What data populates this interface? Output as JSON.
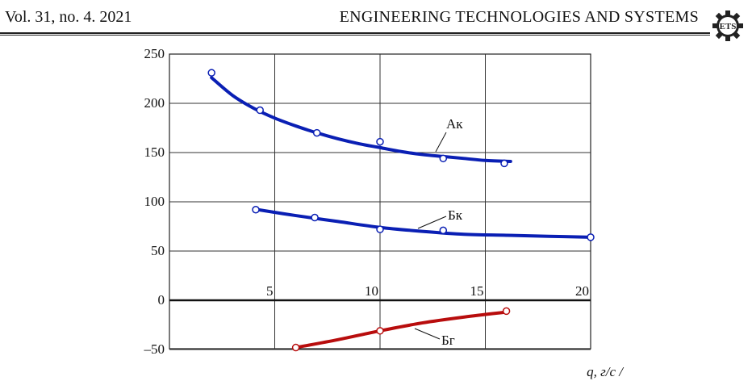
{
  "header": {
    "left": "Vol. 31, no. 4. 2021",
    "right": "ENGINEERING TECHNOLOGIES AND SYSTEMS",
    "logo_text": "ETS"
  },
  "chart_data": {
    "type": "line",
    "xlabel": "q, г/с /",
    "ylabel": "",
    "xlim": [
      0,
      20
    ],
    "ylim": [
      -50,
      250
    ],
    "x_ticks": [
      "5",
      "10",
      "15",
      "20"
    ],
    "y_ticks": [
      "250",
      "200",
      "150",
      "100",
      "50",
      "0",
      "–50"
    ],
    "grid": true,
    "colors": {
      "blue": "#0a1fb4",
      "red": "#b80d0d"
    },
    "series": [
      {
        "name": "Ак",
        "color": "#0a1fb4",
        "fit_x": [
          2,
          3,
          4,
          5,
          6,
          7,
          8,
          9,
          10,
          11,
          12,
          13,
          14,
          15,
          16.2
        ],
        "fit_y": [
          226,
          208,
          195,
          185,
          177,
          170,
          164,
          159,
          155,
          151,
          148,
          146,
          144,
          142,
          141
        ],
        "points_x": [
          2,
          4.3,
          7,
          10,
          13,
          15.9
        ],
        "points_y": [
          231,
          193,
          170,
          161,
          144,
          139
        ]
      },
      {
        "name": "Бк",
        "color": "#0a1fb4",
        "fit_x": [
          4.2,
          6,
          8,
          10,
          12,
          14,
          16,
          18,
          20
        ],
        "fit_y": [
          92,
          86,
          80,
          74,
          70,
          67,
          66,
          65,
          64
        ],
        "points_x": [
          4.1,
          6.9,
          10,
          13,
          20
        ],
        "points_y": [
          92,
          84,
          72,
          71,
          64
        ]
      },
      {
        "name": "Бг",
        "color": "#b80d0d",
        "fit_x": [
          6,
          8,
          10,
          12,
          14,
          16
        ],
        "fit_y": [
          -48,
          -40,
          -31,
          -23,
          -17,
          -12
        ],
        "points_x": [
          6,
          10,
          16
        ],
        "points_y": [
          -48,
          -31,
          -11
        ]
      }
    ]
  }
}
